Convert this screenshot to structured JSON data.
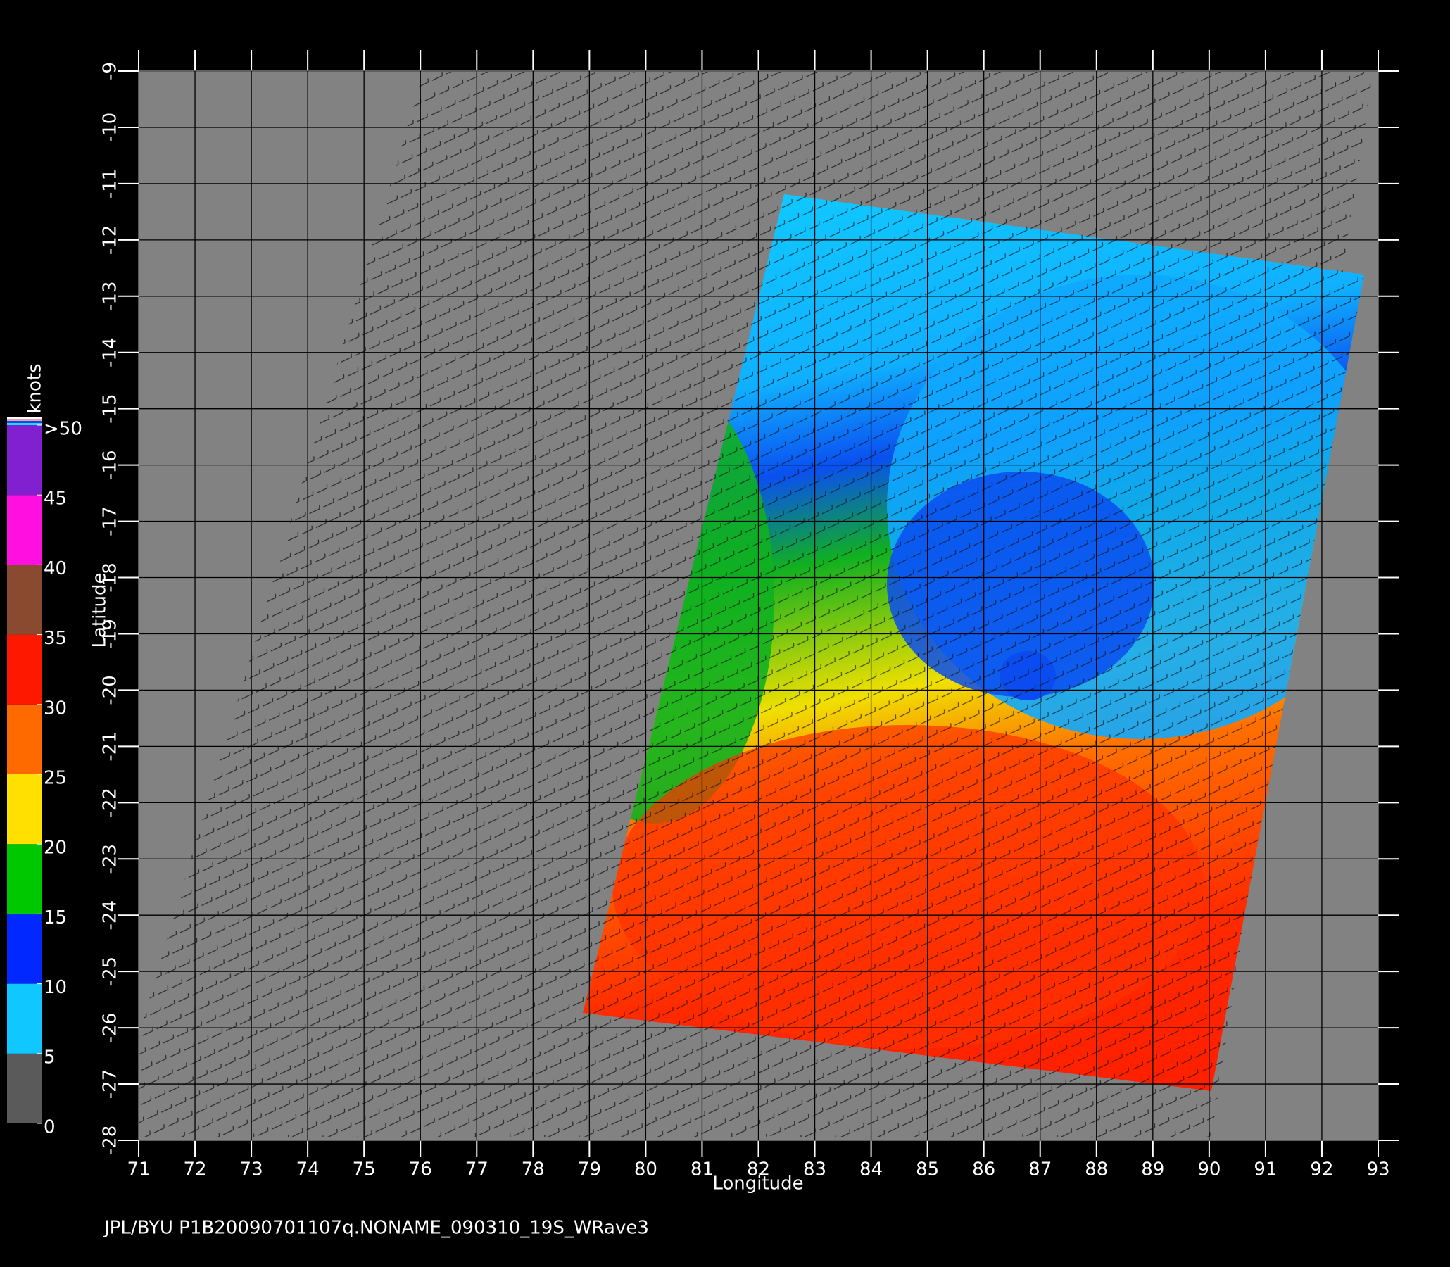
{
  "chart_data": {
    "type": "wind-map",
    "caption": "JPL/BYU  P1B20090701107q.NONAME_090310_19S_WRave3",
    "x_label": "Longitude",
    "y_label": "Latitude",
    "xlim": [
      71,
      93
    ],
    "ylim": [
      -28,
      -9
    ],
    "xticks": [
      71,
      72,
      73,
      74,
      75,
      76,
      77,
      78,
      79,
      80,
      81,
      82,
      83,
      84,
      85,
      86,
      87,
      88,
      89,
      90,
      91,
      92,
      93
    ],
    "yticks": [
      -9,
      -10,
      -11,
      -12,
      -13,
      -14,
      -15,
      -16,
      -17,
      -18,
      -19,
      -20,
      -21,
      -22,
      -23,
      -24,
      -25,
      -26,
      -27,
      -28
    ],
    "grid": true,
    "colorbar": {
      "label": "knots",
      "lim": [
        0,
        50
      ],
      "ticks": [
        0,
        5,
        10,
        15,
        20,
        25,
        30,
        35,
        40,
        45,
        {
          "value": 50,
          "label": ">50"
        }
      ],
      "colors": [
        "#5a5a5a",
        "#10c8ff",
        "#0028ff",
        "#00c800",
        "#ffe000",
        "#ff6a00",
        "#ff1800",
        "#8a4a30",
        "#ff10e0",
        "#8020d0"
      ]
    }
  }
}
